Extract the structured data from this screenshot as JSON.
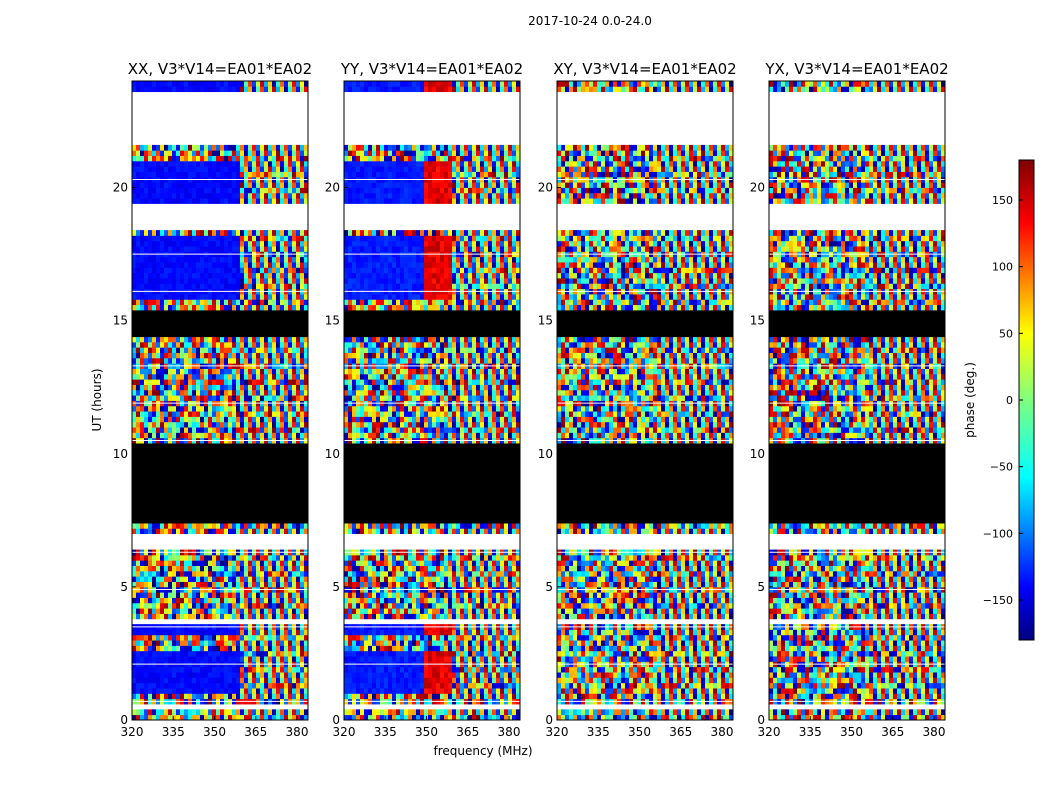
{
  "figure": {
    "suptitle": "2017-10-24 0.0-24.0"
  },
  "chart_data": {
    "type": "heatmap",
    "title": "2017-10-24 0.0-24.0",
    "xlabel": "frequency (MHz)",
    "ylabel": "UT (hours)",
    "xlim": [
      320,
      384
    ],
    "ylim": [
      0,
      24
    ],
    "xticks": [
      320,
      335,
      350,
      365,
      380
    ],
    "yticks": [
      0,
      5,
      10,
      15,
      20
    ],
    "panels": [
      {
        "name": "XX",
        "title": "XX, V3*V14=EA01*EA02"
      },
      {
        "name": "YY",
        "title": "YY, V3*V14=EA01*EA02"
      },
      {
        "name": "XY",
        "title": "XY, V3*V14=EA01*EA02"
      },
      {
        "name": "YX",
        "title": "YX, V3*V14=EA01*EA02"
      }
    ],
    "colorbar": {
      "label": "phase (deg.)",
      "range": [
        -180,
        180
      ],
      "ticks": [
        -150,
        -100,
        -50,
        0,
        50,
        100,
        150
      ],
      "colormap": "jet"
    },
    "time_segments": {
      "flagged_blank_hours": [
        [
          0.4,
          0.55
        ],
        [
          3.6,
          3.75
        ],
        [
          6.5,
          7.05
        ],
        [
          21.6,
          23.6
        ],
        [
          18.4,
          19.4
        ],
        [
          9.6,
          9.7
        ]
      ],
      "black_hours": [
        [
          7.4,
          10.3
        ],
        [
          14.5,
          15.3
        ]
      ],
      "structured_low_freq_hours": [
        [
          0.9,
          2.7
        ],
        [
          3.3,
          3.6
        ],
        [
          15.8,
          18.2
        ],
        [
          19.5,
          21.0
        ],
        [
          23.6,
          24.0
        ]
      ]
    }
  },
  "colors": {
    "axis": "#000000",
    "flagged": "#ffffff",
    "black_band": "#000000"
  }
}
